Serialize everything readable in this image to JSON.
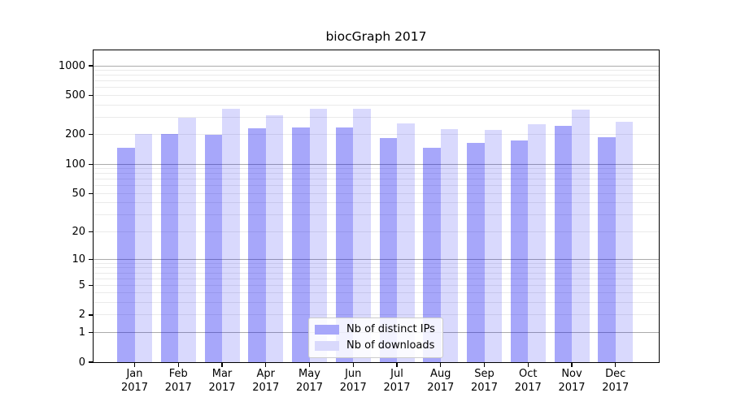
{
  "chart_data": {
    "type": "bar",
    "title": "biocGraph 2017",
    "categories": [
      "Jan",
      "Feb",
      "Mar",
      "Apr",
      "May",
      "Jun",
      "Jul",
      "Aug",
      "Sep",
      "Oct",
      "Nov",
      "Dec"
    ],
    "x_year_label": "2017",
    "series": [
      {
        "name": "Nb of distinct IPs",
        "color_rgba": "rgba(0,0,240,0.345)",
        "color_solid": "#a7a7fa",
        "values": [
          147,
          205,
          199,
          232,
          235,
          237,
          184,
          148,
          164,
          173,
          248,
          187
        ]
      },
      {
        "name": "Nb of downloads",
        "color_rgba": "rgba(0,0,240,0.148)",
        "color_solid": "#d9d9fc",
        "values": [
          204,
          299,
          363,
          312,
          363,
          363,
          261,
          227,
          222,
          255,
          360,
          271
        ]
      }
    ],
    "yscale": "log10(value+1)",
    "yticks": [
      0,
      1,
      2,
      5,
      10,
      20,
      50,
      100,
      200,
      500,
      1000
    ],
    "ylim": [
      0,
      1434
    ],
    "grid": {
      "major_at": [
        1,
        10,
        100,
        1000
      ],
      "minor": "2-9 per decade",
      "major_color": "#ababab",
      "minor_color": "#eaeaea"
    },
    "legend_position": "bottom-center",
    "xlabel": "",
    "ylabel": ""
  }
}
